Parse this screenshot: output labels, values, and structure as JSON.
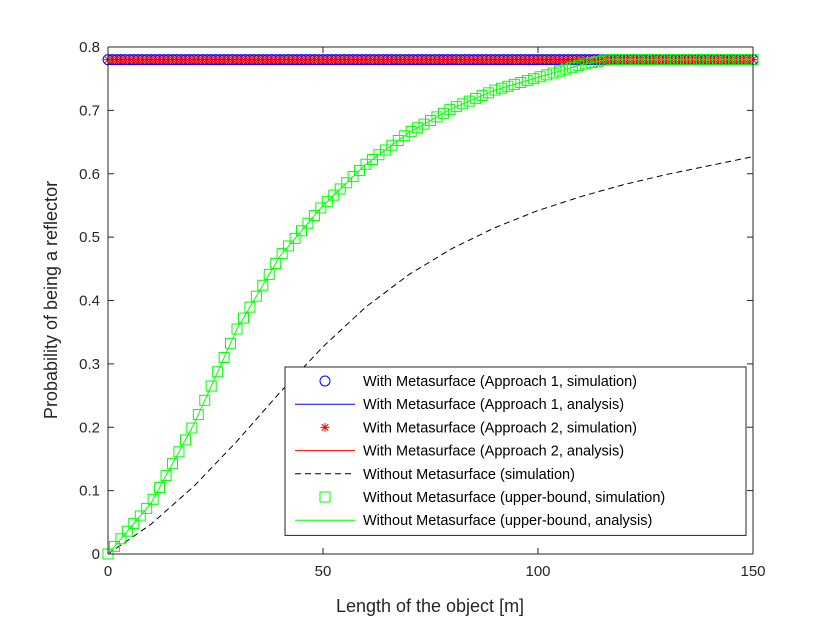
{
  "chart_data": {
    "type": "line",
    "title": "",
    "xlabel": "Length of the object [m]",
    "ylabel": "Probability of being a reflector",
    "xlim": [
      0,
      150
    ],
    "ylim": [
      0,
      0.8
    ],
    "xticks": [
      0,
      50,
      100,
      150
    ],
    "xtick_labels": [
      "0",
      "50",
      "100",
      "150"
    ],
    "yticks": [
      0,
      0.1,
      0.2,
      0.3,
      0.4,
      0.5,
      0.6,
      0.7,
      0.8
    ],
    "ytick_labels": [
      "0",
      "0.1",
      "0.2",
      "0.3",
      "0.4",
      "0.5",
      "0.6",
      "0.7",
      "0.8"
    ],
    "grid": false,
    "legend_location": "bottom-right",
    "series": [
      {
        "name": "With Metasurface (Approach 1, simulation)",
        "style": "markers",
        "marker": "circle",
        "color": "#0000ff",
        "x_range": [
          0,
          150
        ],
        "step": 1,
        "values": [
          0.78
        ]
      },
      {
        "name": "With Metasurface (Approach 1, analysis)",
        "style": "line",
        "dash": "solid",
        "color": "#0000ff",
        "x": [
          0,
          150
        ],
        "values": [
          0.78,
          0.78
        ]
      },
      {
        "name": "With Metasurface (Approach 2, simulation)",
        "style": "markers",
        "marker": "asterisk",
        "color": "#ff0000",
        "x_range": [
          0,
          150
        ],
        "step": 1,
        "values": [
          0.78
        ]
      },
      {
        "name": "With Metasurface (Approach 2, analysis)",
        "style": "line",
        "dash": "solid",
        "color": "#ff0000",
        "x": [
          0,
          150
        ],
        "values": [
          0.78,
          0.78
        ]
      },
      {
        "name": "Without Metasurface (simulation)",
        "style": "line",
        "dash": "dashed",
        "color": "#000000",
        "x": [
          0,
          10,
          20,
          30,
          40,
          50,
          60,
          70,
          80,
          90,
          100,
          110,
          120,
          130,
          140,
          150
        ],
        "values": [
          0.0,
          0.047,
          0.107,
          0.178,
          0.255,
          0.327,
          0.39,
          0.441,
          0.482,
          0.515,
          0.542,
          0.564,
          0.583,
          0.599,
          0.613,
          0.627
        ]
      },
      {
        "name": "Without Metasurface (upper-bound, simulation)",
        "style": "markers",
        "marker": "square",
        "color": "#00ff00",
        "x_range": [
          0,
          150
        ],
        "step": 1.5,
        "x": [
          0,
          10,
          20,
          30,
          40,
          50,
          60,
          70,
          80,
          90,
          100,
          110,
          116,
          120,
          130,
          140,
          150
        ],
        "values": [
          0.0,
          0.08,
          0.205,
          0.355,
          0.47,
          0.55,
          0.615,
          0.665,
          0.703,
          0.732,
          0.752,
          0.772,
          0.78,
          0.78,
          0.78,
          0.78,
          0.78
        ]
      },
      {
        "name": "Without Metasurface (upper-bound, analysis)",
        "style": "line",
        "dash": "solid",
        "color": "#00ff00",
        "x": [
          0,
          10,
          20,
          30,
          40,
          50,
          60,
          70,
          80,
          90,
          100,
          110,
          116,
          120,
          130,
          140,
          150
        ],
        "values": [
          0.0,
          0.08,
          0.205,
          0.355,
          0.47,
          0.55,
          0.615,
          0.665,
          0.703,
          0.732,
          0.752,
          0.772,
          0.78,
          0.78,
          0.78,
          0.78,
          0.78
        ]
      }
    ]
  }
}
